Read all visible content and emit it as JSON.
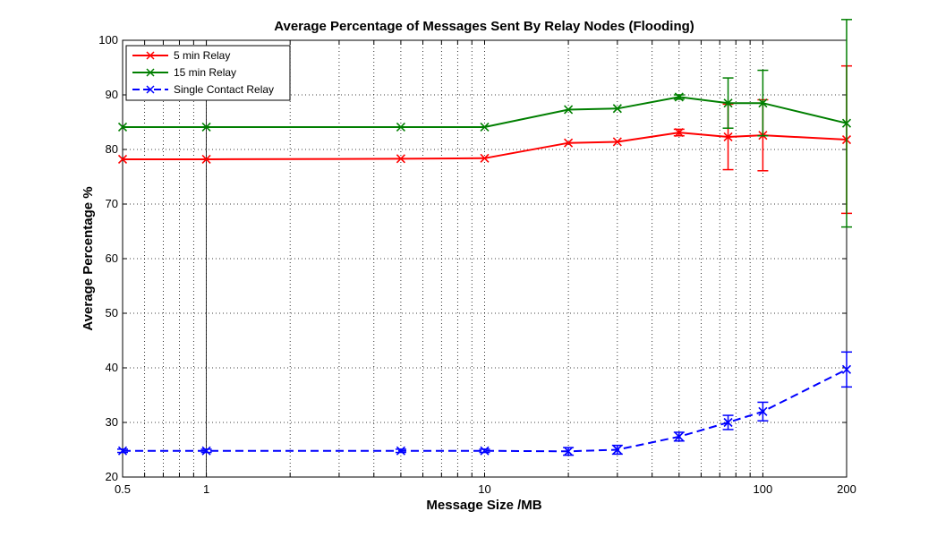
{
  "chart_data": {
    "type": "line",
    "title": "Average Percentage of Messages Sent By Relay Nodes (Flooding)",
    "xlabel": "Message Size /MB",
    "ylabel": "Average Percentage %",
    "xscale": "log",
    "xlim": [
      0.5,
      200
    ],
    "ylim": [
      20,
      100
    ],
    "x_ticks": [
      0.5,
      1,
      10,
      100,
      200
    ],
    "x_tick_labels": [
      "0.5",
      "1",
      "10",
      "100",
      "200"
    ],
    "y_ticks": [
      20,
      30,
      40,
      50,
      60,
      70,
      80,
      90,
      100
    ],
    "y_tick_labels": [
      "20",
      "30",
      "40",
      "50",
      "60",
      "70",
      "80",
      "90",
      "100"
    ],
    "grid": true,
    "legend_position": "top-left",
    "x": [
      0.5,
      1,
      5,
      10,
      20,
      30,
      50,
      75,
      100,
      200
    ],
    "series": [
      {
        "name": "5 min Relay",
        "color": "#ff0000",
        "line_style": "solid",
        "marker": "x",
        "values": [
          78.2,
          78.2,
          78.3,
          78.4,
          81.2,
          81.4,
          83.1,
          82.3,
          82.6,
          81.8
        ],
        "error": [
          0,
          0,
          0,
          0,
          0,
          0,
          0.6,
          6.0,
          6.5,
          13.5
        ]
      },
      {
        "name": "15 min Relay",
        "color": "#007f00",
        "line_style": "solid",
        "marker": "x",
        "values": [
          84.1,
          84.1,
          84.1,
          84.1,
          87.3,
          87.5,
          89.6,
          88.5,
          88.5,
          84.8
        ],
        "error": [
          0,
          0,
          0,
          0,
          0,
          0,
          0.4,
          4.6,
          6.0,
          19.0
        ]
      },
      {
        "name": "Single Contact Relay",
        "color": "#0000ff",
        "line_style": "dashed",
        "marker": "x",
        "values": [
          24.8,
          24.8,
          24.8,
          24.8,
          24.7,
          25.0,
          27.4,
          30.0,
          32.0,
          39.7
        ],
        "error": [
          0.3,
          0.3,
          0.3,
          0.3,
          0.7,
          0.8,
          0.8,
          1.3,
          1.7,
          3.2
        ]
      }
    ]
  }
}
